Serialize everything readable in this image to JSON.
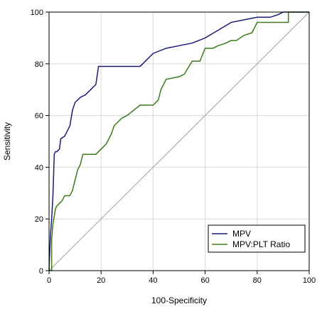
{
  "chart_data": {
    "type": "line",
    "title": "",
    "xlabel": "100-Specificity",
    "ylabel": "Sensitivity",
    "xlim": [
      0,
      100
    ],
    "ylim": [
      0,
      100
    ],
    "xticks": [
      "0",
      "20",
      "40",
      "60",
      "80",
      "100"
    ],
    "yticks": [
      "0",
      "20",
      "40",
      "60",
      "80",
      "100"
    ],
    "grid": true,
    "legend_position": "bottom-right",
    "reference_line": {
      "x": [
        0,
        100
      ],
      "y": [
        0,
        100
      ],
      "color": "#a0a0a0"
    },
    "series": [
      {
        "name": "MPV",
        "color": "#1c1c78",
        "x": [
          0,
          0.5,
          1,
          1.5,
          2,
          2.5,
          3,
          4,
          4.5,
          6,
          8,
          9,
          10,
          12,
          14,
          15,
          16,
          18,
          19,
          20,
          25,
          30,
          35,
          40,
          45,
          50,
          55,
          60,
          65,
          70,
          75,
          80,
          82,
          85,
          88,
          90,
          92,
          95,
          100
        ],
        "y": [
          0,
          13,
          20,
          29,
          45,
          46,
          46,
          47,
          51,
          52,
          56,
          62,
          65,
          67,
          68,
          69,
          70,
          72,
          79,
          79,
          79,
          79,
          79,
          84,
          86,
          87,
          88,
          90,
          93,
          96,
          97,
          98,
          98,
          98,
          99,
          100,
          100,
          100,
          100
        ]
      },
      {
        "name": "MPV:PLT Ratio",
        "color": "#3c7a1a",
        "x": [
          0,
          1,
          1,
          1.5,
          2,
          2.5,
          3,
          4,
          5,
          6,
          8,
          9,
          10,
          11,
          12,
          13,
          18,
          19,
          20,
          21,
          22,
          24,
          25,
          26,
          28,
          30,
          35,
          40,
          42,
          43,
          44,
          45,
          50,
          52,
          55,
          58,
          60,
          63,
          65,
          68,
          70,
          72,
          75,
          78,
          80,
          88,
          92,
          92,
          95,
          100
        ],
        "y": [
          0,
          0,
          12,
          18,
          21,
          24,
          25,
          26,
          27,
          29,
          29,
          31,
          35,
          39,
          41,
          45,
          45,
          46,
          47,
          48,
          49,
          53,
          56,
          57,
          59,
          60,
          64,
          64,
          66,
          70,
          72,
          74,
          75,
          76,
          81,
          81,
          86,
          86,
          87,
          88,
          89,
          89,
          91,
          92,
          96,
          96,
          96,
          100,
          100,
          100
        ]
      }
    ]
  }
}
